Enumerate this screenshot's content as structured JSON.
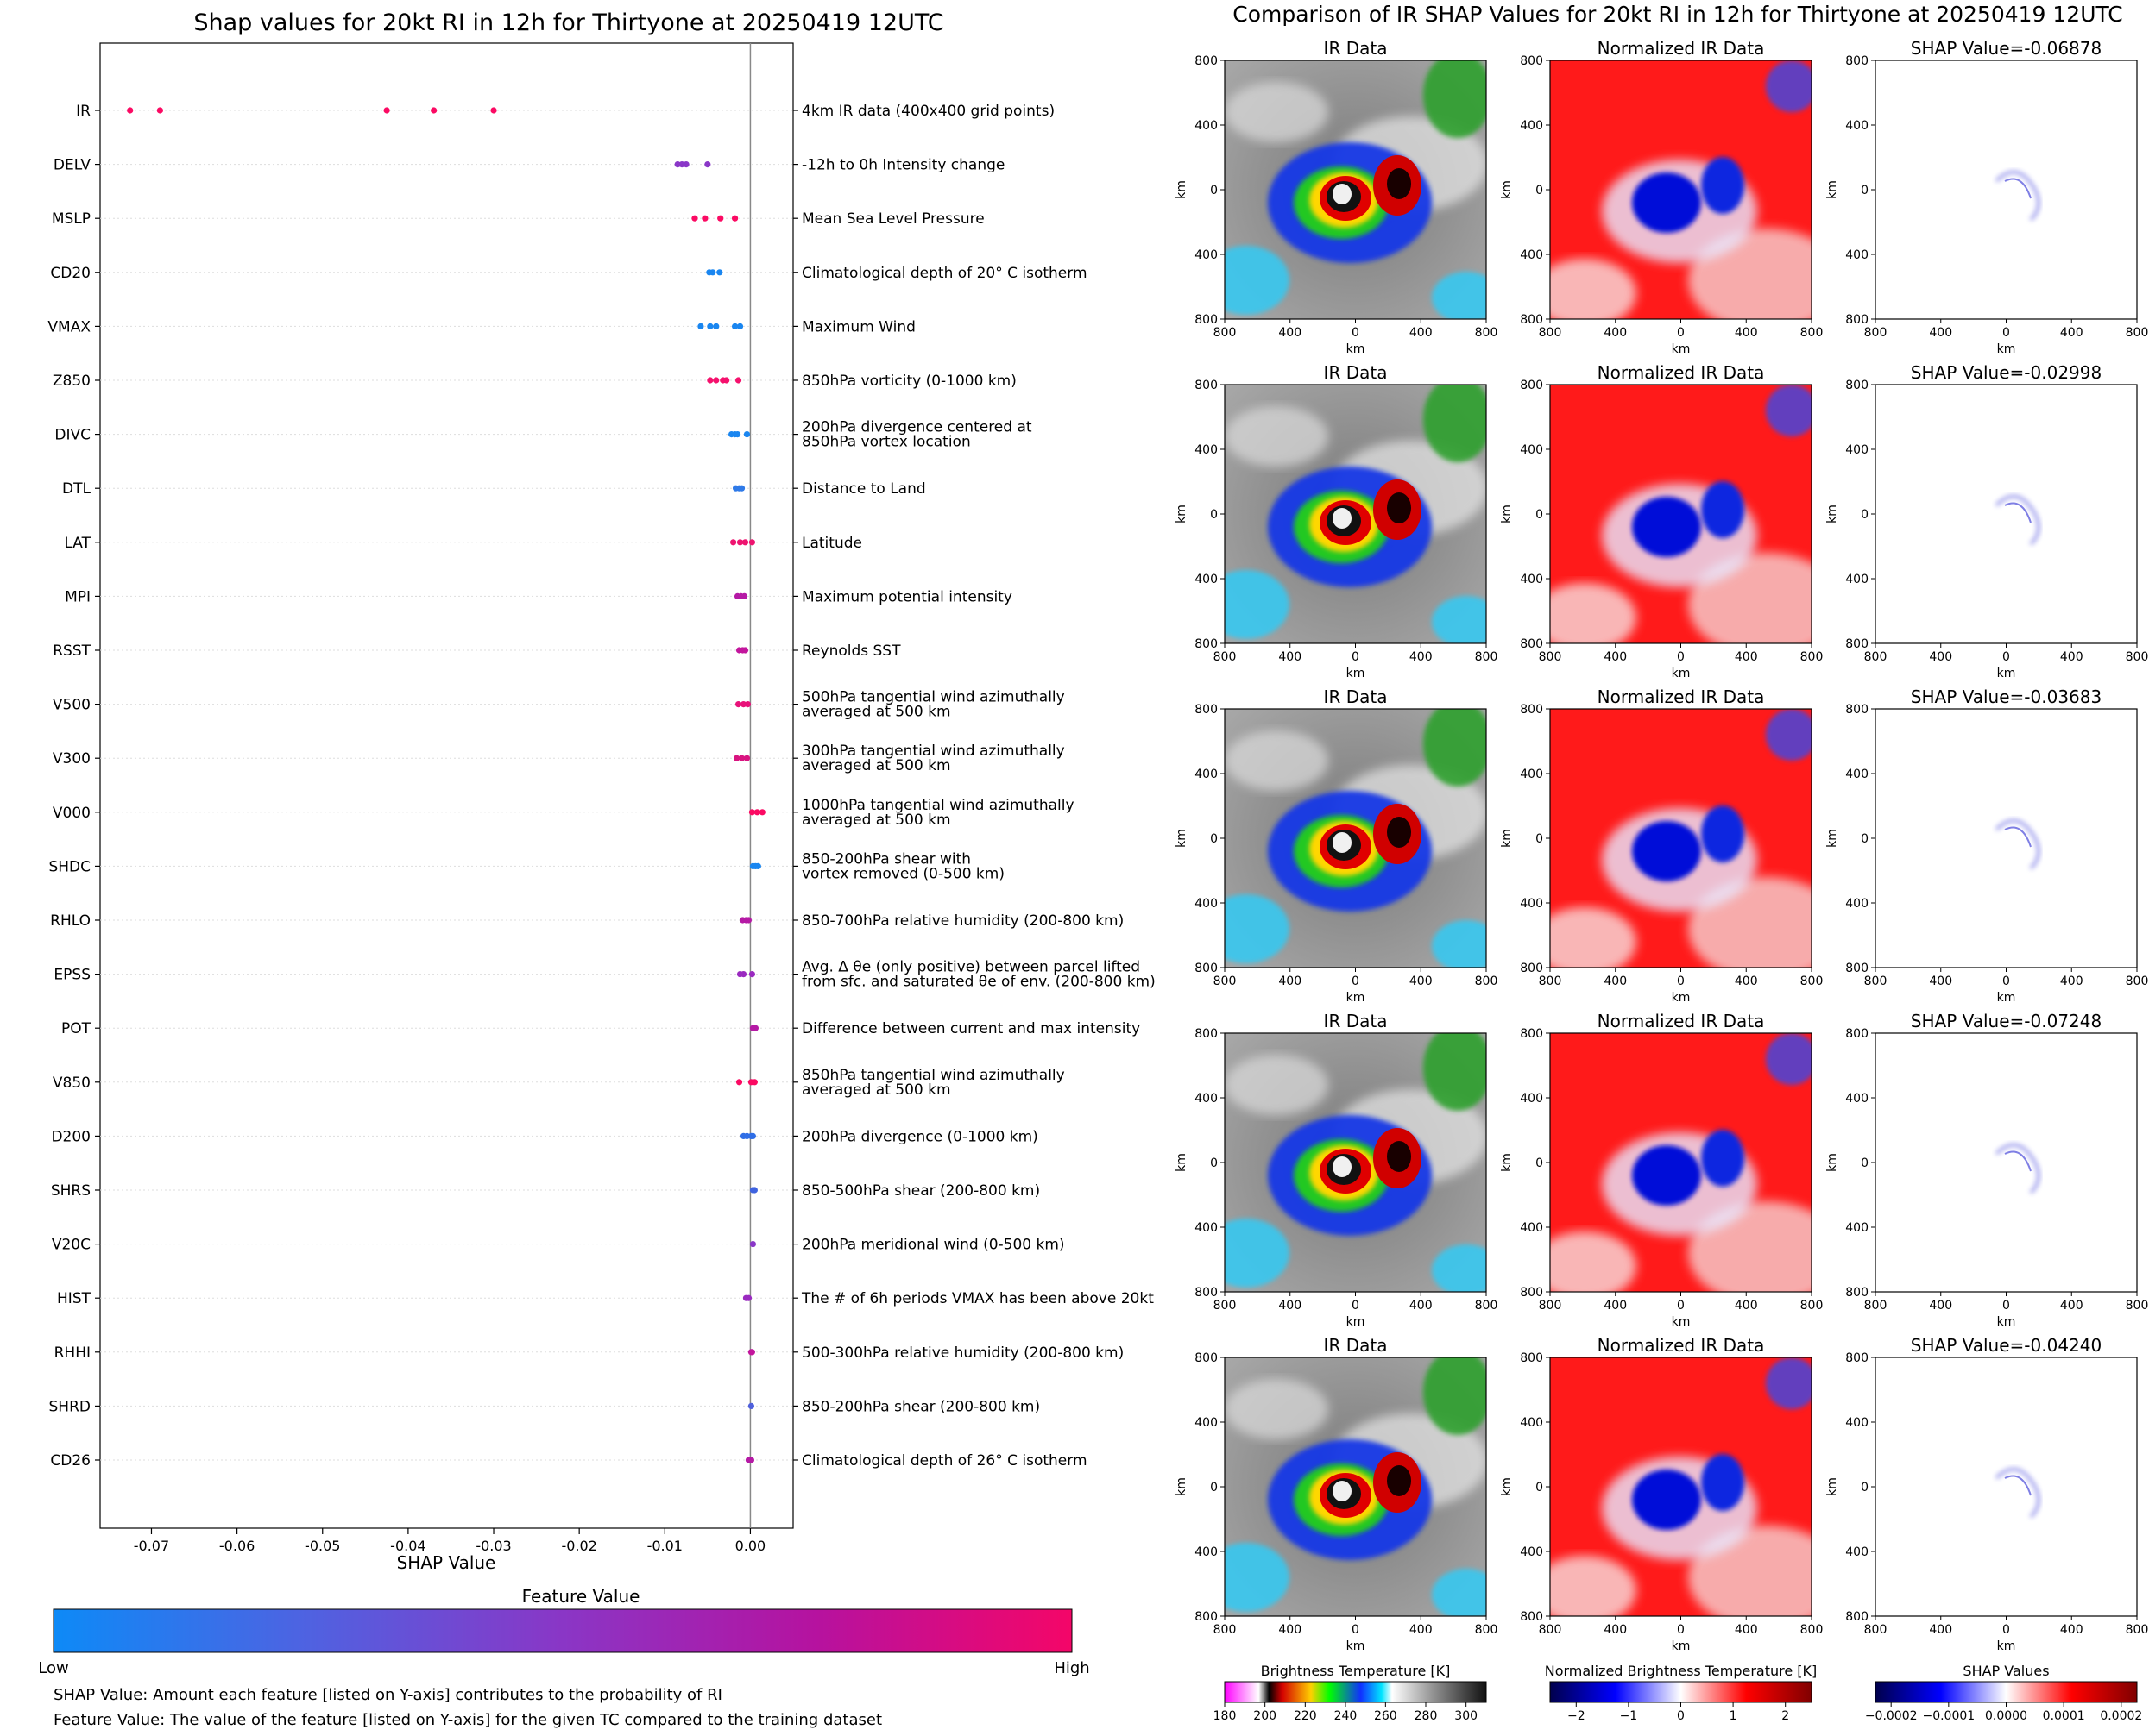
{
  "left_title": "Shap values for 20kt RI in 12h for Thirtyone at 20250419 12UTC",
  "right_title": "Comparison of IR SHAP Values for 20kt RI in 12h for Thirtyone at 20250419 12UTC",
  "chart_data": {
    "type": "scatter",
    "xlabel": "SHAP Value",
    "xlim": [
      -0.076,
      0.005
    ],
    "xticks": [
      "-0.07",
      "-0.06",
      "-0.05",
      "-0.04",
      "-0.03",
      "-0.02",
      "-0.01",
      "0.00"
    ],
    "features": [
      {
        "name": "IR",
        "desc": [
          "4km IR data (400x400 grid points)"
        ],
        "points": [
          -0.0725,
          -0.069,
          -0.0425,
          -0.037,
          -0.03
        ],
        "color": "#fb0a63"
      },
      {
        "name": "DELV",
        "desc": [
          "-12h to 0h Intensity change"
        ],
        "points": [
          -0.0085,
          -0.008,
          -0.0075,
          -0.005
        ],
        "color": "#8a37c8"
      },
      {
        "name": "MSLP",
        "desc": [
          "Mean Sea Level Pressure"
        ],
        "points": [
          -0.0065,
          -0.0053,
          -0.0035,
          -0.0018
        ],
        "color": "#fb0a63"
      },
      {
        "name": "CD20",
        "desc": [
          "Climatological depth of 20° C isotherm"
        ],
        "points": [
          -0.0048,
          -0.0044,
          -0.0036
        ],
        "color": "#1a86f0"
      },
      {
        "name": "VMAX",
        "desc": [
          "Maximum Wind"
        ],
        "points": [
          -0.0058,
          -0.0047,
          -0.004,
          -0.0018,
          -0.0012
        ],
        "color": "#1a86f0"
      },
      {
        "name": "Z850",
        "desc": [
          "850hPa vorticity (0-1000 km)"
        ],
        "points": [
          -0.0047,
          -0.004,
          -0.0032,
          -0.0028,
          -0.0014
        ],
        "color": "#f5116d"
      },
      {
        "name": "DIVC",
        "desc": [
          "200hPa divergence centered at",
          "850hPa vortex location"
        ],
        "points": [
          -0.0022,
          -0.0018,
          -0.0015,
          -0.0004
        ],
        "color": "#1a86f0"
      },
      {
        "name": "DTL",
        "desc": [
          "Distance to Land"
        ],
        "points": [
          -0.0017,
          -0.0013,
          -0.001
        ],
        "color": "#2f7ae8"
      },
      {
        "name": "LAT",
        "desc": [
          "Latitude"
        ],
        "points": [
          -0.002,
          -0.0012,
          -0.0006,
          0.0002
        ],
        "color": "#ee1470"
      },
      {
        "name": "MPI",
        "desc": [
          "Maximum potential intensity"
        ],
        "points": [
          -0.0015,
          -0.0011,
          -0.0007
        ],
        "color": "#b51aa5"
      },
      {
        "name": "RSST",
        "desc": [
          "Reynolds SST"
        ],
        "points": [
          -0.0013,
          -0.0009,
          -0.0006
        ],
        "color": "#c3169d"
      },
      {
        "name": "V500",
        "desc": [
          "500hPa tangential wind azimuthally",
          "averaged at 500 km"
        ],
        "points": [
          -0.0014,
          -0.0008,
          -0.0003
        ],
        "color": "#e8127a"
      },
      {
        "name": "V300",
        "desc": [
          "300hPa tangential wind azimuthally",
          "averaged at 500 km"
        ],
        "points": [
          -0.0016,
          -0.001,
          -0.0004
        ],
        "color": "#d81480"
      },
      {
        "name": "V000",
        "desc": [
          "1000hPa tangential wind azimuthally",
          "averaged at 500 km"
        ],
        "points": [
          0.0002,
          0.0008,
          0.0014
        ],
        "color": "#fb0a63"
      },
      {
        "name": "SHDC",
        "desc": [
          "850-200hPa shear with",
          "vortex removed (0-500 km)"
        ],
        "points": [
          0.0003,
          0.0006,
          0.0009
        ],
        "color": "#1a86f0"
      },
      {
        "name": "RHLO",
        "desc": [
          "850-700hPa relative humidity (200-800 km)"
        ],
        "points": [
          -0.0009,
          -0.0005,
          -0.0002
        ],
        "color": "#b51aa5"
      },
      {
        "name": "EPSS",
        "desc": [
          "Avg. Δ θe (only positive) between parcel lifted",
          "from sfc. and saturated θe of env. (200-800 km)"
        ],
        "points": [
          -0.0012,
          -0.0008,
          0.0002
        ],
        "color": "#9a2ac0"
      },
      {
        "name": "POT",
        "desc": [
          "Difference between current and max intensity"
        ],
        "points": [
          0.0003,
          0.0006
        ],
        "color": "#b51aa5"
      },
      {
        "name": "V850",
        "desc": [
          "850hPa tangential wind azimuthally",
          "averaged at 500 km"
        ],
        "points": [
          -0.0013,
          0.0001,
          0.0005
        ],
        "color": "#fb0a63"
      },
      {
        "name": "D200",
        "desc": [
          "200hPa divergence (0-1000 km)"
        ],
        "points": [
          -0.0008,
          -0.0004,
          0.0001,
          0.0003
        ],
        "color": "#2f6ee6"
      },
      {
        "name": "SHRS",
        "desc": [
          "850-500hPa shear (200-800 km)"
        ],
        "points": [
          0.0003,
          0.0005
        ],
        "color": "#3f63e0"
      },
      {
        "name": "V20C",
        "desc": [
          "200hPa meridional wind (0-500 km)"
        ],
        "points": [
          0.0003
        ],
        "color": "#8a37c8"
      },
      {
        "name": "HIST",
        "desc": [
          "The # of 6h periods VMAX has been above 20kt"
        ],
        "points": [
          -0.0005,
          -0.0002
        ],
        "color": "#9a2ac0"
      },
      {
        "name": "RHHI",
        "desc": [
          "500-300hPa relative humidity (200-800 km)"
        ],
        "points": [
          0.0001,
          0.0002
        ],
        "color": "#c3169d"
      },
      {
        "name": "SHRD",
        "desc": [
          "850-200hPa shear (200-800 km)"
        ],
        "points": [
          0.0001
        ],
        "color": "#4f60dc"
      },
      {
        "name": "CD26",
        "desc": [
          "Climatological depth of 26° C isotherm"
        ],
        "points": [
          -0.0002,
          0.0001
        ],
        "color": "#b51aa5"
      }
    ]
  },
  "feature_colorbar": {
    "title": "Feature Value",
    "low": "Low",
    "high": "High",
    "colors": [
      "#0d8af7",
      "#4f62e1",
      "#8a36c6",
      "#b6129f",
      "#f40668"
    ]
  },
  "notes": [
    "SHAP Value: Amount each feature [listed on Y-axis] contributes to the probability of RI",
    "Feature Value: The value of the feature [listed on Y-axis] for the given TC compared to the training dataset"
  ],
  "panel_titles": {
    "ir": "IR Data",
    "norm": "Normalized IR Data"
  },
  "shap_titles": [
    "SHAP Value=-0.06878",
    "SHAP Value=-0.02998",
    "SHAP Value=-0.03683",
    "SHAP Value=-0.07248",
    "SHAP Value=-0.04240"
  ],
  "panel_axis": {
    "label": "km",
    "ticks": [
      "800",
      "400",
      "0",
      "400",
      "800"
    ]
  },
  "colorbars": [
    {
      "title": "Brightness Temperature [K]",
      "ticks": [
        "180",
        "200",
        "220",
        "240",
        "260",
        "280",
        "300"
      ]
    },
    {
      "title": "Normalized Brightness Temperature [K]",
      "ticks": [
        "−2",
        "−1",
        "0",
        "1",
        "2"
      ]
    },
    {
      "title": "SHAP Values",
      "ticks": [
        "−0.0002",
        "−0.0001",
        "0.0000",
        "0.0001",
        "0.0002"
      ]
    }
  ]
}
